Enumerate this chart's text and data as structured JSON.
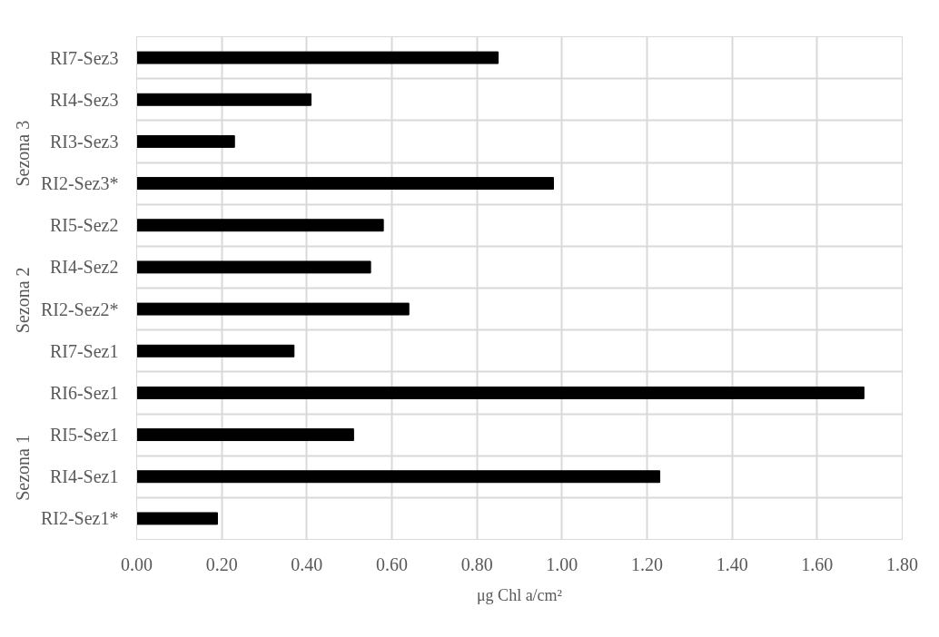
{
  "chart_data": {
    "type": "bar",
    "orientation": "horizontal",
    "categories": [
      "RI7-Sez3",
      "RI4-Sez3",
      "RI3-Sez3",
      "RI2-Sez3*",
      "RI5-Sez2",
      "RI4-Sez2",
      "RI2-Sez2*",
      "RI7-Sez1",
      "RI6-Sez1",
      "RI5-Sez1",
      "RI4-Sez1",
      "RI2-Sez1*"
    ],
    "values": [
      0.85,
      0.41,
      0.23,
      0.98,
      0.58,
      0.55,
      0.64,
      0.37,
      1.71,
      0.51,
      1.23,
      0.19
    ],
    "color": "#000000",
    "xlabel": "μg Chl a/cm²",
    "xlim": [
      0,
      1.8
    ],
    "xticks": [
      {
        "value": 0,
        "label": "0.00"
      },
      {
        "value": 0.2,
        "label": "0.20"
      },
      {
        "value": 0.4,
        "label": "0.40"
      },
      {
        "value": 0.6,
        "label": "0.60"
      },
      {
        "value": 0.8,
        "label": "0.80"
      },
      {
        "value": 1.0,
        "label": "1.00"
      },
      {
        "value": 1.2,
        "label": "1.20"
      },
      {
        "value": 1.4,
        "label": "1.40"
      },
      {
        "value": 1.6,
        "label": "1.60"
      },
      {
        "value": 1.8,
        "label": "1.80"
      }
    ],
    "annotations": [
      "Sezona 3",
      "Sezona 2",
      "Sezona 1"
    ],
    "grid": true
  }
}
